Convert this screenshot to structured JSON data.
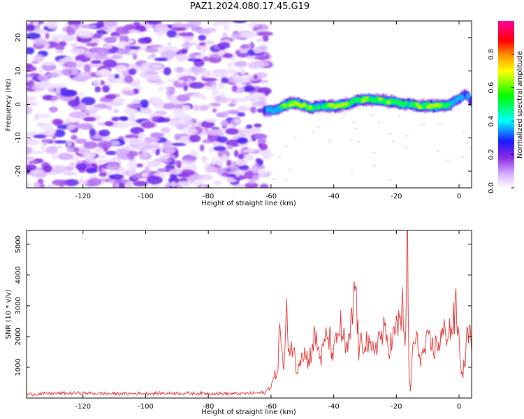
{
  "title": "PAZ1.2024.080.17.45.G19",
  "colors": {
    "snr_line": "#e03030",
    "colormap": [
      "#ffffff",
      "#d9b3ff",
      "#8a2be2",
      "#1a1aff",
      "#00ffff",
      "#00ff00",
      "#ffff00",
      "#ff8c00",
      "#ff0000",
      "#ff00a0"
    ]
  },
  "chart_data": [
    {
      "type": "heatmap",
      "xlabel": "Height of straight line (km)",
      "ylabel": "Frequency (Hz)",
      "xlim": [
        -138,
        4
      ],
      "ylim": [
        -25,
        25
      ],
      "xticks": [
        -120,
        -100,
        -80,
        -60,
        -40,
        -20,
        0
      ],
      "yticks": [
        -20,
        -10,
        0,
        10,
        20
      ],
      "colorbar": {
        "label": "Normalized spectral amplitude",
        "range": [
          0.0,
          1.0
        ],
        "ticks": [
          0.0,
          0.2,
          0.4,
          0.6,
          0.8
        ]
      },
      "noise_region_x": [
        -138,
        -61
      ],
      "ridge": {
        "x": [
          -62,
          -58,
          -55,
          -52,
          -48,
          -44,
          -40,
          -36,
          -33,
          -30,
          -27,
          -23,
          -20,
          -16,
          -12,
          -8,
          -4,
          -1,
          2,
          4
        ],
        "y": [
          -2,
          -1.5,
          0,
          0.5,
          -1,
          -0.5,
          -0.5,
          0,
          1,
          1.5,
          1.5,
          1,
          0.5,
          0,
          -0.5,
          -0.5,
          -0.5,
          1,
          3,
          1
        ],
        "amplitude": [
          0.25,
          0.4,
          0.6,
          0.7,
          0.55,
          0.5,
          0.7,
          0.55,
          0.45,
          0.65,
          0.5,
          0.6,
          0.55,
          0.5,
          0.6,
          0.75,
          0.55,
          0.4,
          0.3,
          0.3
        ]
      }
    },
    {
      "type": "line",
      "xlabel": "Height of straight line (km)",
      "ylabel": "SNR (10 * v/v)",
      "xlim": [
        -138,
        4
      ],
      "ylim": [
        0,
        5450
      ],
      "xticks": [
        -120,
        -100,
        -80,
        -60,
        -40,
        -20,
        0
      ],
      "yticks": [
        1000,
        2000,
        3000,
        4000,
        5000
      ],
      "series": [
        {
          "x": [
            -138,
            -130,
            -120,
            -110,
            -100,
            -90,
            -80,
            -70,
            -62,
            -60,
            -58,
            -57,
            -56,
            -55,
            -54,
            -53,
            -52,
            -50,
            -48,
            -46,
            -44,
            -42,
            -40,
            -38,
            -36,
            -35,
            -34,
            -33,
            -32,
            -30,
            -28,
            -26,
            -24,
            -22,
            -20,
            -18,
            -17,
            -16.5,
            -16,
            -15.5,
            -15,
            -14,
            -12,
            -10,
            -8,
            -6,
            -4,
            -2,
            -1,
            0,
            1,
            2,
            3,
            4
          ],
          "y": [
            120,
            150,
            160,
            140,
            150,
            160,
            150,
            140,
            170,
            400,
            900,
            2400,
            800,
            2600,
            1500,
            1800,
            900,
            1600,
            1200,
            2000,
            1300,
            2100,
            1400,
            2400,
            1500,
            1800,
            2700,
            3800,
            1500,
            2000,
            1400,
            1900,
            2100,
            1700,
            2200,
            2900,
            1800,
            5450,
            900,
            200,
            1400,
            1900,
            1300,
            1800,
            1600,
            1900,
            2200,
            2300,
            2900,
            1800,
            700,
            1300,
            2400,
            1500
          ]
        }
      ]
    }
  ]
}
